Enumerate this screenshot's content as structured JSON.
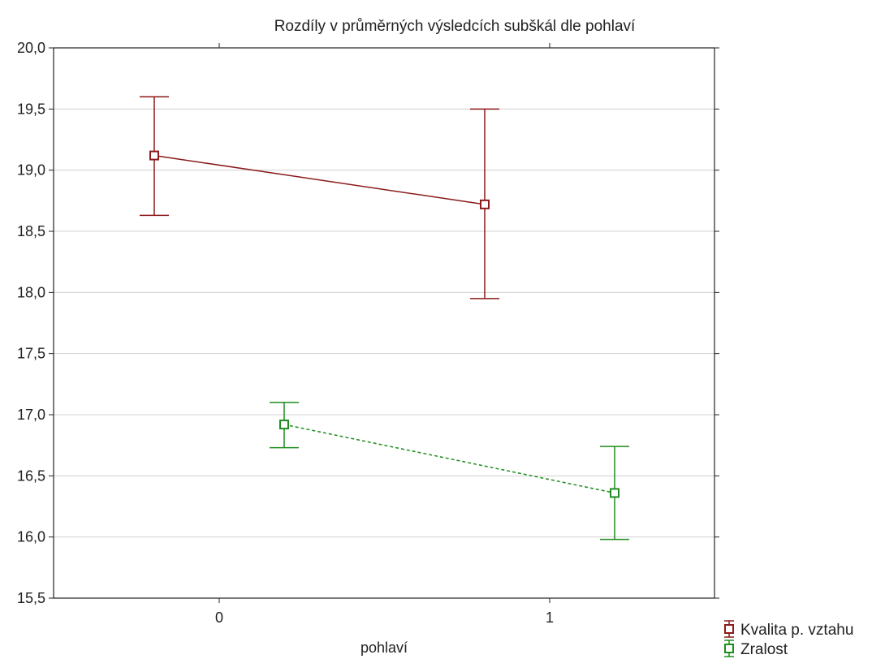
{
  "chart_data": {
    "type": "line",
    "title": "Rozdíly v průměrných výsledcích subškál dle pohlaví",
    "xlabel": "pohlaví",
    "ylabel": "",
    "categories": [
      "0",
      "1"
    ],
    "ylim": [
      15.5,
      20.0
    ],
    "y_ticks": [
      "15,5",
      "16,0",
      "16,5",
      "17,0",
      "17,5",
      "18,0",
      "18,5",
      "19,0",
      "19,5",
      "20,0"
    ],
    "grid": true,
    "legend_position": "bottom-right",
    "series": [
      {
        "name": "Kvalita p. vztahu",
        "color": "#8b1a1a",
        "line_style": "solid",
        "values": [
          19.12,
          18.72
        ],
        "error_low": [
          18.63,
          17.95
        ],
        "error_high": [
          19.6,
          19.5
        ]
      },
      {
        "name": "Zralost",
        "color": "#1e8c1e",
        "line_style": "dashed",
        "values": [
          16.92,
          16.36
        ],
        "error_low": [
          16.73,
          15.98
        ],
        "error_high": [
          17.1,
          16.74
        ]
      }
    ]
  }
}
